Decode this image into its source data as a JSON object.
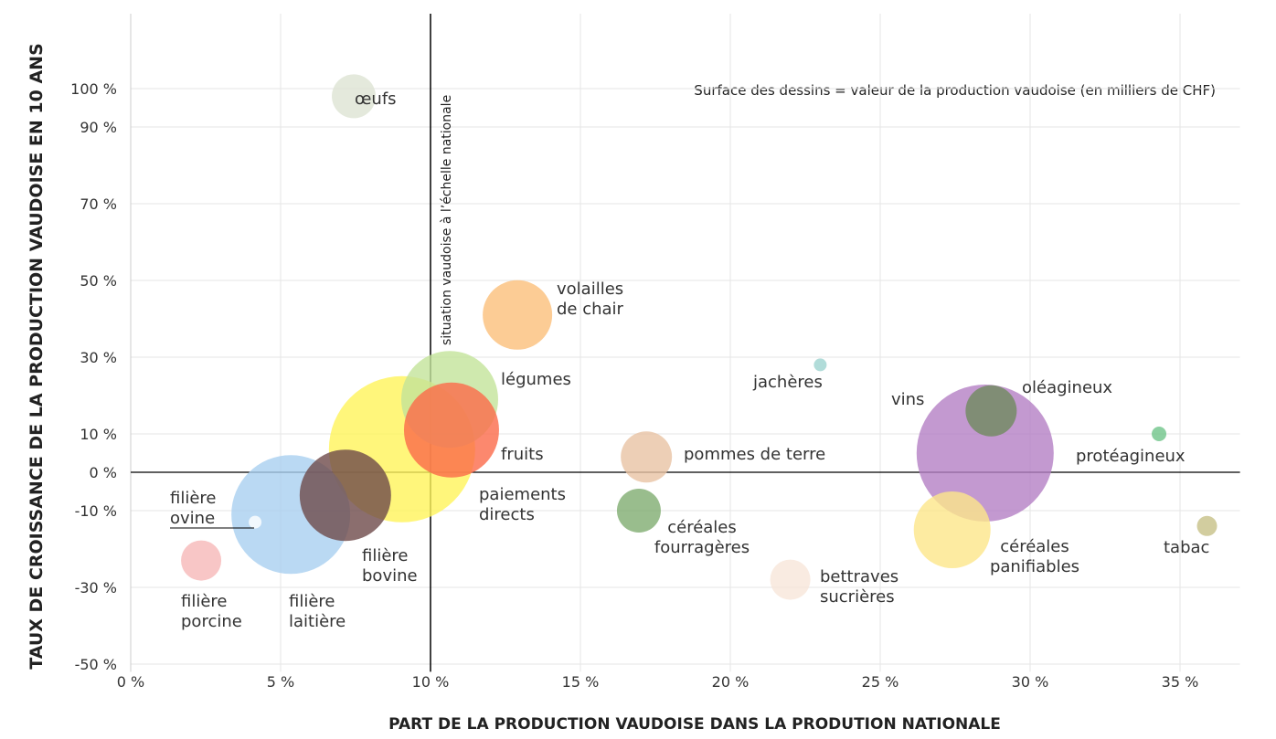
{
  "chart_data": {
    "type": "bubble",
    "x_label": "PART DE LA PRODUCTION VAUDOISE DANS LA PRODUTION NATIONALE",
    "y_label": "TAUX DE CROISSANCE DE LA PRODUCTION VAUDOISE EN 10 ANS",
    "note": "Surface des dessins = valeur de la production vaudoise (en milliers de CHF)",
    "reference_x": 10,
    "reference_label": "situation vaudoise à l’échelle nationale",
    "xlim": [
      0,
      37
    ],
    "ylim": [
      -52,
      110
    ],
    "xticks": [
      {
        "value": 0,
        "label": "0 %"
      },
      {
        "value": 5,
        "label": "5 %"
      },
      {
        "value": 10,
        "label": "10 %"
      },
      {
        "value": 15,
        "label": "15 %"
      },
      {
        "value": 20,
        "label": "20 %"
      },
      {
        "value": 25,
        "label": "25 %"
      },
      {
        "value": 30,
        "label": "30 %"
      },
      {
        "value": 35,
        "label": "35 %"
      }
    ],
    "yticks": [
      {
        "value": -50,
        "label": "-50 %"
      },
      {
        "value": -30,
        "label": "-30 %"
      },
      {
        "value": -10,
        "label": "-10 %"
      },
      {
        "value": 0,
        "label": "0 %"
      },
      {
        "value": 10,
        "label": "10 %"
      },
      {
        "value": 30,
        "label": "30 %"
      },
      {
        "value": 50,
        "label": "50 %"
      },
      {
        "value": 70,
        "label": "70 %"
      },
      {
        "value": 90,
        "label": "90 %"
      },
      {
        "value": 100,
        "label": "100 %"
      }
    ],
    "grid": true,
    "labels": [
      "œufs",
      "filière\novine",
      "filière\nporcine",
      "filière\nlaitière",
      "filière\nbovine",
      "paiements\ndirects",
      "légumes",
      "fruits",
      "volailles\nde chair",
      "pommes de terre",
      "céréales\nfourragères",
      "jachères",
      "bettraves\nsucrières",
      "vins",
      "oléagineux",
      "céréales\npanifiables",
      "protéagineux",
      "tabac"
    ],
    "x": [
      7.44,
      4.15,
      2.35,
      5.34,
      7.16,
      9.05,
      10.64,
      10.7,
      12.9,
      17.2,
      16.95,
      23.0,
      22.0,
      28.5,
      28.7,
      27.4,
      34.3,
      35.9
    ],
    "y": [
      98,
      -13,
      -23,
      -11,
      -6,
      6,
      19,
      11,
      41,
      4,
      -10,
      28,
      -28,
      5,
      16,
      -15,
      10,
      -14
    ],
    "sizes": [
      576,
      49,
      484,
      4225,
      2500,
      6400,
      2809,
      2704,
      1444,
      784,
      576,
      49,
      484,
      5625,
      784,
      1764,
      64,
      121
    ],
    "colors": [
      "#dde3d3",
      "#ffffff",
      "#f6b8b8",
      "#a9d0f0",
      "#6e4a4a",
      "#fff45a",
      "#c3e39a",
      "#fb6a4a",
      "#fbbf7a",
      "#e8c3a4",
      "#7fac70",
      "#9ed3d0",
      "#f7e6da",
      "#b47fc4",
      "#6f8a5e",
      "#fde68a",
      "#6fc48a",
      "#c7c187"
    ]
  }
}
